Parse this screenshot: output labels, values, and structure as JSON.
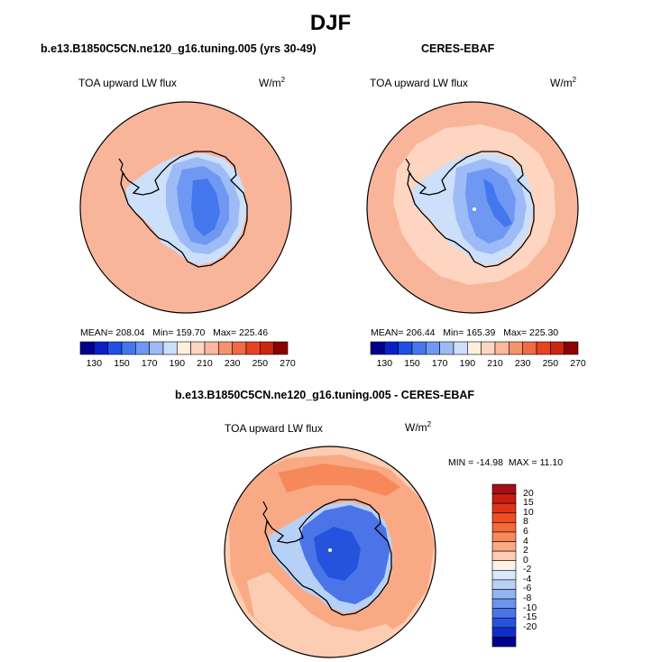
{
  "figure": {
    "title": "DJF"
  },
  "chart_data": [
    {
      "type": "heatmap",
      "projection": "polar-stereographic-south",
      "title": "b.e13.B1850C5CN.ne120_g16.tuning.005 (yrs 30-49)",
      "variable": "TOA upward LW flux",
      "units": "W/m",
      "units_exp": "2",
      "stats": {
        "mean": "MEAN= 208.04",
        "min": "Min= 159.70",
        "max": "Max= 225.46"
      },
      "colorbar": {
        "orientation": "horizontal",
        "ticks": [
          "130",
          "150",
          "170",
          "190",
          "210",
          "230",
          "250",
          "270"
        ],
        "colors": [
          "#00008b",
          "#0a1fc8",
          "#1f4fe6",
          "#4477ee",
          "#6f98f2",
          "#9dbcf7",
          "#ccdffb",
          "#fff0dd",
          "#fdd5c0",
          "#fbb89c",
          "#f6926e",
          "#f06a45",
          "#e8421f",
          "#cc2610",
          "#8b0000"
        ]
      },
      "fields": {
        "ocean": "#f9b59a",
        "ocean_outer": "#f8b090",
        "land_low": "#ccdffb",
        "land_mid": "#9dbcf7",
        "plateau": "#6f98f2",
        "dome": "#4477ee"
      }
    },
    {
      "type": "heatmap",
      "projection": "polar-stereographic-south",
      "title": "CERES-EBAF",
      "variable": "TOA upward LW flux",
      "units": "W/m",
      "units_exp": "2",
      "stats": {
        "mean": "MEAN= 206.44",
        "min": "Min= 165.39",
        "max": "Max= 225.30"
      },
      "colorbar": {
        "orientation": "horizontal",
        "ticks": [
          "130",
          "150",
          "170",
          "190",
          "210",
          "230",
          "250",
          "270"
        ],
        "colors": [
          "#00008b",
          "#0a1fc8",
          "#1f4fe6",
          "#4477ee",
          "#6f98f2",
          "#9dbcf7",
          "#ccdffb",
          "#fff0dd",
          "#fdd5c0",
          "#fbb89c",
          "#f6926e",
          "#f06a45",
          "#e8421f",
          "#cc2610",
          "#8b0000"
        ]
      },
      "fields": {
        "ocean": "#f9b59a",
        "ring": "#fdd5c0",
        "land_low": "#ccdffb",
        "land_mid": "#9dbcf7",
        "plateau": "#6f98f2",
        "dome": "#4477ee"
      }
    },
    {
      "type": "heatmap",
      "projection": "polar-stereographic-south",
      "title": "b.e13.B1850C5CN.ne120_g16.tuning.005 - CERES-EBAF",
      "variable": "TOA upward LW flux",
      "units": "W/m",
      "units_exp": "2",
      "stats": {
        "min": "MIN = -14.98",
        "max": "MAX =  11.10"
      },
      "colorbar": {
        "orientation": "vertical",
        "ticks": [
          "20",
          "15",
          "10",
          "8",
          "6",
          "4",
          "2",
          "0",
          "-2",
          "-4",
          "-6",
          "-8",
          "-10",
          "-15",
          "-20"
        ],
        "colors": [
          "#a50f15",
          "#c81d12",
          "#e0341a",
          "#ef4d22",
          "#f46a39",
          "#f7885a",
          "#f9aa85",
          "#fccdb2",
          "#fff1e3",
          "#dae8fa",
          "#b7d0f5",
          "#92b4f0",
          "#6d95ec",
          "#4a74e7",
          "#2653de",
          "#0f2fc6",
          "#00008b"
        ]
      },
      "fields": {
        "ocean": "#f9aa85",
        "ocean_light": "#fccdb2",
        "ocean_warm": "#f7885a",
        "land": "#4a74e7",
        "land_deep": "#2653de",
        "land_light": "#b7d0f5"
      }
    }
  ]
}
